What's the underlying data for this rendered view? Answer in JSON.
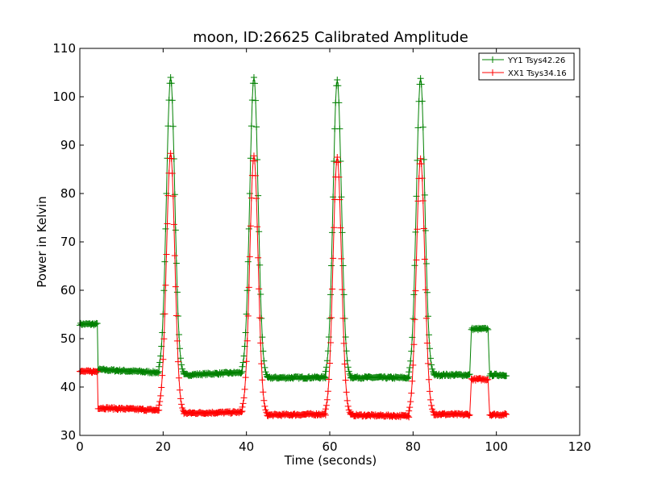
{
  "chart_data": {
    "type": "line",
    "title": "moon, ID:26625 Calibrated Amplitude",
    "xlabel": "Time (seconds)",
    "ylabel": "Power in Kelvin",
    "xlim": [
      0,
      120
    ],
    "ylim": [
      30,
      110
    ],
    "xticks": [
      0,
      20,
      40,
      60,
      80,
      100,
      120
    ],
    "yticks": [
      30,
      40,
      50,
      60,
      70,
      80,
      90,
      100,
      110
    ],
    "xtick_labels": [
      "0",
      "20",
      "40",
      "60",
      "80",
      "100",
      "120"
    ],
    "ytick_labels": [
      "30",
      "40",
      "50",
      "60",
      "70",
      "80",
      "90",
      "100",
      "110"
    ],
    "grid": false,
    "legend_position": "top-right",
    "marker": "+",
    "series": [
      {
        "name": "YY1 Tsys42.26",
        "color": "#008000",
        "baseline_segments": [
          {
            "t0": 0.0,
            "t1": 4.2,
            "level": 53.0
          },
          {
            "t0": 4.4,
            "t1": 19.0,
            "from": 43.6,
            "to": 43.0
          },
          {
            "t0": 25.0,
            "t1": 39.0,
            "from": 42.5,
            "to": 43.0
          },
          {
            "t0": 45.0,
            "t1": 59.0,
            "from": 41.9,
            "to": 42.0
          },
          {
            "t0": 65.0,
            "t1": 79.0,
            "from": 42.0,
            "to": 41.9
          },
          {
            "t0": 85.0,
            "t1": 93.6,
            "from": 42.5,
            "to": 42.5
          },
          {
            "t0": 94.0,
            "t1": 98.0,
            "level": 52.0
          },
          {
            "t0": 98.4,
            "t1": 102.5,
            "level": 42.5
          }
        ],
        "peaks": [
          {
            "t": 21.8,
            "value": 104.0,
            "base_left": 43.0,
            "base_right": 42.5
          },
          {
            "t": 41.8,
            "value": 104.0,
            "base_left": 43.0,
            "base_right": 41.9
          },
          {
            "t": 61.8,
            "value": 103.5,
            "base_left": 42.0,
            "base_right": 42.0
          },
          {
            "t": 81.8,
            "value": 103.8,
            "base_left": 41.9,
            "base_right": 42.5
          }
        ]
      },
      {
        "name": "XX1 Tsys34.16",
        "color": "#ff0000",
        "baseline_segments": [
          {
            "t0": 0.0,
            "t1": 4.2,
            "level": 43.2
          },
          {
            "t0": 4.4,
            "t1": 19.0,
            "from": 35.7,
            "to": 35.2
          },
          {
            "t0": 25.0,
            "t1": 39.0,
            "from": 34.6,
            "to": 34.8
          },
          {
            "t0": 45.0,
            "t1": 59.0,
            "from": 34.2,
            "to": 34.4
          },
          {
            "t0": 65.0,
            "t1": 79.0,
            "from": 34.2,
            "to": 34.0
          },
          {
            "t0": 85.0,
            "t1": 93.6,
            "from": 34.4,
            "to": 34.3
          },
          {
            "t0": 94.0,
            "t1": 98.0,
            "level": 41.6
          },
          {
            "t0": 98.4,
            "t1": 102.5,
            "level": 34.3
          }
        ],
        "peaks": [
          {
            "t": 21.8,
            "value": 88.3,
            "base_left": 35.2,
            "base_right": 34.6
          },
          {
            "t": 41.8,
            "value": 87.8,
            "base_left": 34.8,
            "base_right": 34.2
          },
          {
            "t": 61.8,
            "value": 87.5,
            "base_left": 34.4,
            "base_right": 34.2
          },
          {
            "t": 81.8,
            "value": 87.2,
            "base_left": 34.0,
            "base_right": 34.4
          }
        ]
      }
    ]
  }
}
